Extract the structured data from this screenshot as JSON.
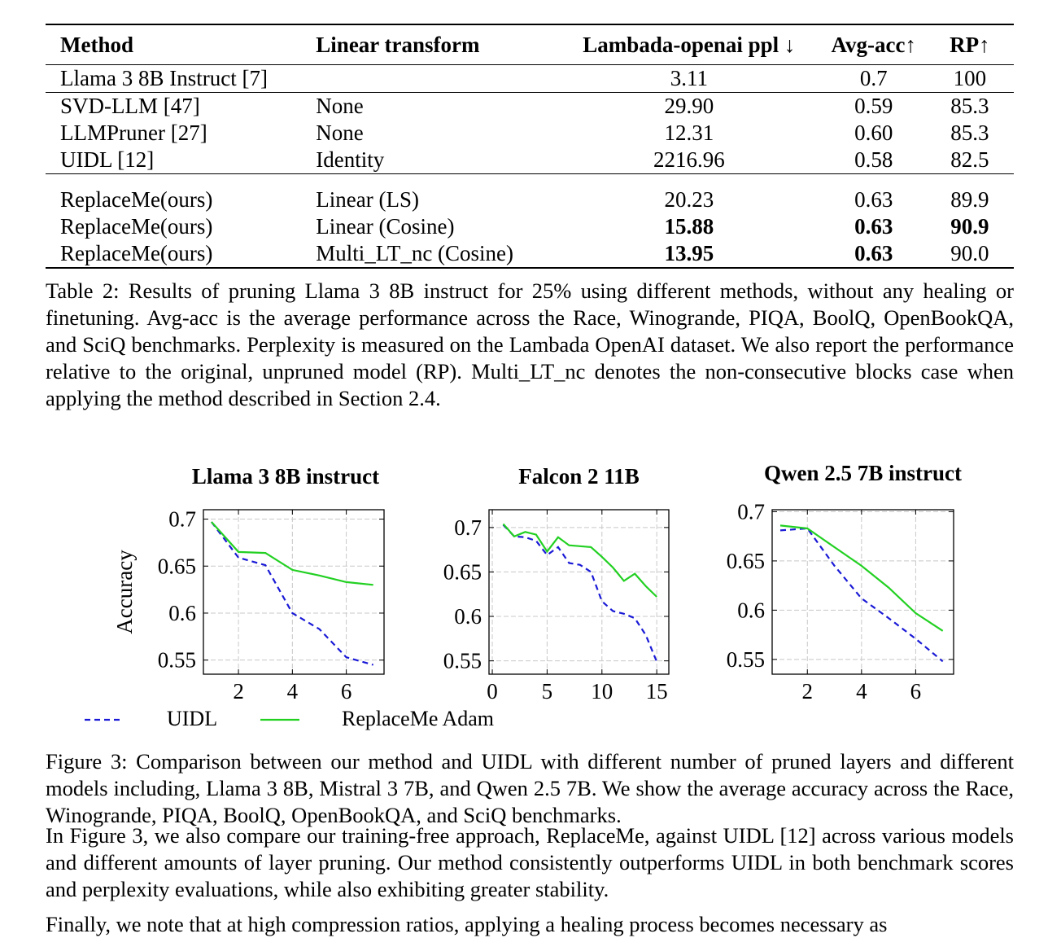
{
  "table": {
    "headers": [
      "Method",
      "Linear transform",
      "Lambada-openai ppl ↓",
      "Avg-acc↑",
      "RP↑"
    ],
    "rows": [
      {
        "method": "Llama 3 8B Instruct [7]",
        "transform": "",
        "ppl": "3.11",
        "acc": "0.7",
        "rp": "100",
        "bold": []
      },
      {
        "method": "SVD-LLM [47]",
        "transform": "None",
        "ppl": "29.90",
        "acc": "0.59",
        "rp": "85.3",
        "bold": []
      },
      {
        "method": "LLMPruner [27]",
        "transform": "None",
        "ppl": "12.31",
        "acc": "0.60",
        "rp": "85.3",
        "bold": []
      },
      {
        "method": "UIDL [12]",
        "transform": "Identity",
        "ppl": "2216.96",
        "acc": "0.58",
        "rp": "82.5",
        "bold": []
      },
      {
        "method": "ReplaceMe(ours)",
        "transform": "Linear (LS)",
        "ppl": "20.23",
        "acc": "0.63",
        "rp": "89.9",
        "bold": []
      },
      {
        "method": "ReplaceMe(ours)",
        "transform": "Linear (Cosine)",
        "ppl": "15.88",
        "acc": "0.63",
        "rp": "90.9",
        "bold": [
          "ppl",
          "acc",
          "rp"
        ]
      },
      {
        "method": "ReplaceMe(ours)",
        "transform": "Multi_LT_nc (Cosine)",
        "ppl": "13.95",
        "acc": "0.63",
        "rp": "90.0",
        "bold": [
          "ppl",
          "acc"
        ]
      }
    ]
  },
  "table_caption": "Table 2: Results of pruning Llama 3 8B instruct for 25% using different methods, without any healing or finetuning. Avg-acc is the average performance across the Race, Winogrande, PIQA, BoolQ, OpenBookQA, and SciQ benchmarks. Perplexity is measured on the Lambada OpenAI dataset. We also report the performance relative to the original, unpruned model (RP). Multi_LT_nc denotes the non-consecutive blocks case when applying the method described in Section 2.4.",
  "figure_caption": "Figure 3: Comparison between our method and UIDL with different number of pruned layers and different models including, Llama 3 8B, Mistral 3 7B, and Qwen 2.5 7B. We show the average accuracy across the Race, Winogrande, PIQA, BoolQ, OpenBookQA, and SciQ benchmarks.",
  "body_text": "In Figure 3, we also compare our training-free approach, ReplaceMe, against UIDL [12] across various models and different amounts of layer pruning. Our method consistently outperforms UIDL in both benchmark scores and perplexity evaluations, while also exhibiting greater stability.",
  "cut_text": "Finally, we note that at high compression ratios, applying a healing process becomes necessary as",
  "legend": {
    "uidl": "UIDL",
    "replaceme": "ReplaceMe Adam"
  },
  "colors": {
    "uidl": "#1a1ad6",
    "replaceme": "#22d022"
  },
  "chart_data": [
    {
      "type": "line",
      "title": "Llama 3 8B instruct",
      "ylabel": "Accuracy",
      "xlabel": "",
      "xlim": [
        0.7,
        7.4
      ],
      "ylim": [
        0.535,
        0.71
      ],
      "xticks": [
        2,
        4,
        6
      ],
      "xtick_labels": [
        "2",
        "4",
        "6"
      ],
      "yticks": [
        0.55,
        0.6,
        0.65,
        0.7
      ],
      "ytick_labels": [
        "0.55",
        "0.6",
        "0.65",
        "0.7"
      ],
      "grid": true,
      "series": [
        {
          "name": "UIDL",
          "x": [
            1,
            2,
            3,
            4,
            5,
            6,
            7
          ],
          "y": [
            0.697,
            0.659,
            0.651,
            0.6,
            0.583,
            0.553,
            0.545
          ]
        },
        {
          "name": "ReplaceMe Adam",
          "x": [
            1,
            2,
            3,
            4,
            5,
            6,
            7
          ],
          "y": [
            0.697,
            0.665,
            0.664,
            0.646,
            0.64,
            0.633,
            0.63
          ]
        }
      ]
    },
    {
      "type": "line",
      "title": "Falcon 2 11B",
      "ylabel": "",
      "xlabel": "",
      "xlim": [
        -0.3,
        16.1
      ],
      "ylim": [
        0.535,
        0.72
      ],
      "xticks": [
        0,
        5,
        10,
        15
      ],
      "xtick_labels": [
        "0",
        "5",
        "10",
        "15"
      ],
      "yticks": [
        0.55,
        0.6,
        0.65,
        0.7
      ],
      "ytick_labels": [
        "0.55",
        "0.6",
        "0.65",
        "0.7"
      ],
      "grid": true,
      "series": [
        {
          "name": "UIDL",
          "x": [
            1,
            2,
            3,
            4,
            5,
            6,
            7,
            8,
            9,
            10,
            11,
            12,
            13,
            14,
            15
          ],
          "y": [
            0.703,
            0.69,
            0.689,
            0.685,
            0.669,
            0.678,
            0.66,
            0.658,
            0.65,
            0.617,
            0.606,
            0.603,
            0.598,
            0.579,
            0.549
          ]
        },
        {
          "name": "ReplaceMe Adam",
          "x": [
            1,
            2,
            3,
            4,
            5,
            6,
            7,
            8,
            9,
            10,
            11,
            12,
            13,
            14,
            15
          ],
          "y": [
            0.704,
            0.69,
            0.695,
            0.692,
            0.673,
            0.689,
            0.68,
            0.679,
            0.678,
            0.667,
            0.655,
            0.64,
            0.648,
            0.634,
            0.622
          ]
        }
      ]
    },
    {
      "type": "line",
      "title": "Qwen 2.5 7B instruct",
      "ylabel": "",
      "xlabel": "",
      "xlim": [
        0.7,
        7.4
      ],
      "ylim": [
        0.535,
        0.702
      ],
      "xticks": [
        2,
        4,
        6
      ],
      "xtick_labels": [
        "2",
        "4",
        "6"
      ],
      "yticks": [
        0.55,
        0.6,
        0.65,
        0.7
      ],
      "ytick_labels": [
        "0.55",
        "0.6",
        "0.65",
        "0.7"
      ],
      "grid": true,
      "series": [
        {
          "name": "UIDL",
          "x": [
            1,
            2,
            3,
            4,
            5,
            6,
            7
          ],
          "y": [
            0.681,
            0.683,
            0.645,
            0.612,
            0.592,
            0.571,
            0.548
          ]
        },
        {
          "name": "ReplaceMe Adam",
          "x": [
            1,
            2,
            3,
            4,
            5,
            6,
            7
          ],
          "y": [
            0.686,
            0.683,
            0.664,
            0.645,
            0.623,
            0.597,
            0.579
          ]
        }
      ]
    }
  ]
}
